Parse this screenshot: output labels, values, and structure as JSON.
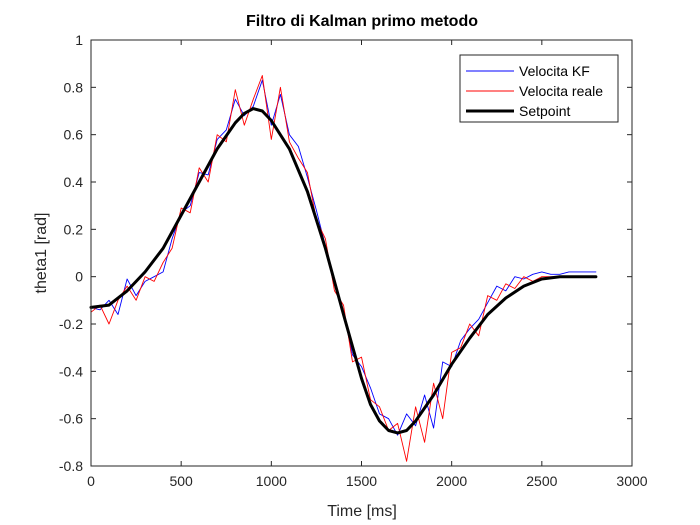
{
  "chart_data": {
    "type": "line",
    "title": "Filtro di Kalman primo metodo",
    "xlabel": "Time [ms]",
    "ylabel": "theta1 [rad]",
    "xlim": [
      0,
      3000
    ],
    "ylim": [
      -0.8,
      1
    ],
    "xticks": [
      0,
      500,
      1000,
      1500,
      2000,
      2500,
      3000
    ],
    "yticks": [
      -0.8,
      -0.6,
      -0.4,
      -0.2,
      0,
      0.2,
      0.4,
      0.6,
      0.8,
      1
    ],
    "xtick_labels": [
      "0",
      "500",
      "1000",
      "1500",
      "2000",
      "2500",
      "3000"
    ],
    "ytick_labels": [
      "-0.8",
      "-0.6",
      "-0.4",
      "-0.2",
      "0",
      "0.2",
      "0.4",
      "0.6",
      "0.8",
      "1"
    ],
    "grid": false,
    "legend_position": "top-right",
    "series": [
      {
        "name": "Velocita KF",
        "color": "#0000ff",
        "line_width": "thin",
        "x": [
          0,
          50,
          100,
          150,
          200,
          250,
          300,
          350,
          400,
          450,
          500,
          550,
          600,
          650,
          700,
          750,
          800,
          850,
          900,
          950,
          1000,
          1050,
          1100,
          1150,
          1200,
          1250,
          1300,
          1350,
          1400,
          1450,
          1500,
          1550,
          1600,
          1650,
          1700,
          1750,
          1800,
          1850,
          1900,
          1950,
          2000,
          2050,
          2100,
          2150,
          2200,
          2250,
          2300,
          2350,
          2400,
          2450,
          2500,
          2550,
          2600,
          2650,
          2700,
          2750,
          2800
        ],
        "y": [
          -0.13,
          -0.14,
          -0.1,
          -0.16,
          -0.01,
          -0.08,
          -0.02,
          0.0,
          0.02,
          0.16,
          0.27,
          0.3,
          0.44,
          0.43,
          0.58,
          0.62,
          0.75,
          0.68,
          0.72,
          0.83,
          0.64,
          0.77,
          0.6,
          0.55,
          0.42,
          0.28,
          0.13,
          -0.02,
          -0.15,
          -0.33,
          -0.38,
          -0.47,
          -0.58,
          -0.6,
          -0.67,
          -0.58,
          -0.63,
          -0.5,
          -0.64,
          -0.36,
          -0.38,
          -0.27,
          -0.22,
          -0.18,
          -0.11,
          -0.04,
          -0.06,
          0.0,
          -0.01,
          0.01,
          0.02,
          0.01,
          0.01,
          0.02,
          0.02,
          0.02,
          0.02
        ]
      },
      {
        "name": "Velocita reale",
        "color": "#ff0000",
        "line_width": "thin",
        "x": [
          0,
          50,
          100,
          150,
          200,
          250,
          300,
          350,
          400,
          450,
          500,
          550,
          600,
          650,
          700,
          750,
          800,
          850,
          900,
          950,
          1000,
          1050,
          1100,
          1150,
          1200,
          1250,
          1300,
          1350,
          1400,
          1450,
          1500,
          1550,
          1600,
          1650,
          1700,
          1750,
          1800,
          1850,
          1900,
          1950,
          2000,
          2050,
          2100,
          2150,
          2200,
          2250,
          2300,
          2350,
          2400,
          2450,
          2500,
          2550,
          2600,
          2650,
          2700,
          2750,
          2800
        ],
        "y": [
          -0.15,
          -0.12,
          -0.2,
          -0.1,
          -0.04,
          -0.1,
          0.0,
          -0.02,
          0.06,
          0.12,
          0.29,
          0.27,
          0.46,
          0.4,
          0.6,
          0.57,
          0.79,
          0.64,
          0.75,
          0.85,
          0.58,
          0.8,
          0.57,
          0.5,
          0.44,
          0.24,
          0.16,
          -0.06,
          -0.12,
          -0.36,
          -0.34,
          -0.52,
          -0.55,
          -0.65,
          -0.62,
          -0.78,
          -0.55,
          -0.7,
          -0.45,
          -0.6,
          -0.32,
          -0.3,
          -0.2,
          -0.25,
          -0.08,
          -0.1,
          -0.03,
          -0.05,
          0.0,
          -0.02,
          0.0,
          0.0,
          0.0,
          0.0,
          0.0,
          0.0,
          0.0
        ]
      },
      {
        "name": "Setpoint",
        "color": "#000000",
        "line_width": "thick",
        "x": [
          0,
          100,
          200,
          300,
          400,
          500,
          600,
          700,
          800,
          850,
          900,
          950,
          1000,
          1100,
          1200,
          1300,
          1400,
          1500,
          1550,
          1600,
          1650,
          1700,
          1750,
          1800,
          1900,
          2000,
          2100,
          2200,
          2300,
          2400,
          2500,
          2600,
          2700,
          2800
        ],
        "y": [
          -0.13,
          -0.12,
          -0.06,
          0.02,
          0.12,
          0.26,
          0.4,
          0.54,
          0.65,
          0.69,
          0.71,
          0.7,
          0.66,
          0.54,
          0.36,
          0.12,
          -0.16,
          -0.43,
          -0.54,
          -0.61,
          -0.65,
          -0.66,
          -0.65,
          -0.61,
          -0.5,
          -0.37,
          -0.26,
          -0.16,
          -0.09,
          -0.04,
          -0.01,
          0.0,
          0.0,
          0.0
        ]
      }
    ]
  }
}
